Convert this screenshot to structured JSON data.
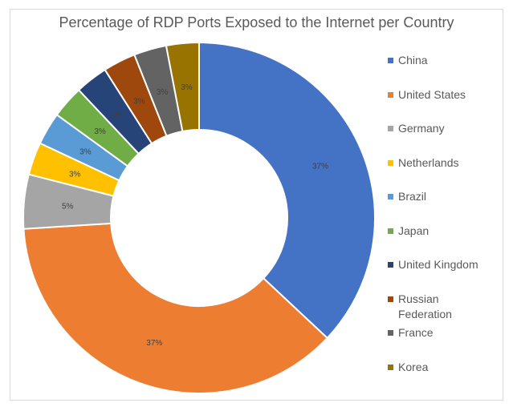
{
  "chart_data": {
    "type": "pie",
    "donut": true,
    "title": "Percentage of RDP Ports Exposed to the Internet per Country",
    "categories": [
      "China",
      "United States",
      "Germany",
      "Netherlands",
      "Brazil",
      "Japan",
      "United Kingdom",
      "Russian Federation",
      "France",
      "Korea"
    ],
    "values": [
      37,
      37,
      5,
      3,
      3,
      3,
      3,
      3,
      3,
      3
    ],
    "data_labels": [
      "37%",
      "37%",
      "5%",
      "3%",
      "3%",
      "3%",
      "3%",
      "3%",
      "3%",
      "3%"
    ],
    "colors": [
      "#4472C4",
      "#ED7D31",
      "#A5A5A5",
      "#FFC000",
      "#5B9BD5",
      "#70AD47",
      "#264478",
      "#9E480E",
      "#636363",
      "#997300"
    ],
    "legend_position": "right"
  }
}
